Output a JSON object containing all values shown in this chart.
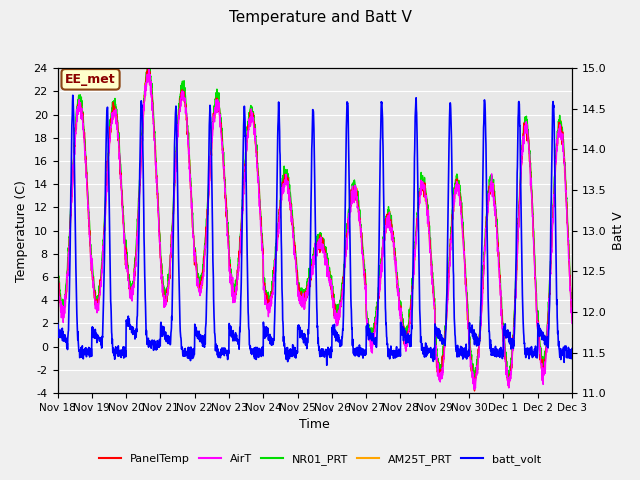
{
  "title": "Temperature and Batt V",
  "xlabel": "Time",
  "ylabel_left": "Temperature (C)",
  "ylabel_right": "Batt V",
  "ylim_left": [
    -4,
    24
  ],
  "ylim_right": [
    11.0,
    15.0
  ],
  "yticks_left": [
    -4,
    -2,
    0,
    2,
    4,
    6,
    8,
    10,
    12,
    14,
    16,
    18,
    20,
    22,
    24
  ],
  "yticks_right": [
    11.0,
    11.5,
    12.0,
    12.5,
    13.0,
    13.5,
    14.0,
    14.5,
    15.0
  ],
  "xtick_labels": [
    "Nov 18",
    "Nov 19",
    "Nov 20",
    "Nov 21",
    "Nov 22",
    "Nov 23",
    "Nov 24",
    "Nov 25",
    "Nov 26",
    "Nov 27",
    "Nov 28",
    "Nov 29",
    "Nov 30",
    "Dec 1",
    "Dec 2",
    "Dec 3"
  ],
  "annotation_text": "EE_met",
  "annotation_color": "#8B0000",
  "annotation_bg": "#FFFFCC",
  "annotation_border": "#8B4513",
  "bg_color": "#E8E8E8",
  "grid_color": "#FFFFFF",
  "line_colors": {
    "PanelTemp": "#FF0000",
    "AirT": "#FF00FF",
    "NR01_PRT": "#00DD00",
    "AM25T_PRT": "#FFA500",
    "batt_volt": "#0000FF"
  },
  "line_widths": {
    "PanelTemp": 1.0,
    "AirT": 1.0,
    "NR01_PRT": 1.0,
    "AM25T_PRT": 1.0,
    "batt_volt": 1.2
  },
  "n_days": 15,
  "pts_per_day": 144,
  "daily_max_temp": [
    21.0,
    20.5,
    23.5,
    22.0,
    21.0,
    20.0,
    14.5,
    9.0,
    13.5,
    11.0,
    14.0,
    14.0,
    14.0,
    19.0,
    19.0
  ],
  "daily_min_temp": [
    3.0,
    3.5,
    4.5,
    4.0,
    5.0,
    4.5,
    3.5,
    4.0,
    2.5,
    0.5,
    0.5,
    -2.5,
    -3.0,
    -3.0,
    -2.0
  ],
  "batt_night_base": [
    11.5,
    11.5,
    11.6,
    11.5,
    11.5,
    11.5,
    11.5,
    11.5,
    11.5,
    11.5,
    11.5,
    11.5,
    11.5,
    11.5,
    11.5
  ],
  "batt_day_peak": [
    14.6,
    14.5,
    14.6,
    14.5,
    14.5,
    14.5,
    14.5,
    14.5,
    14.6,
    14.6,
    14.6,
    14.6,
    14.6,
    14.6,
    14.6
  ]
}
